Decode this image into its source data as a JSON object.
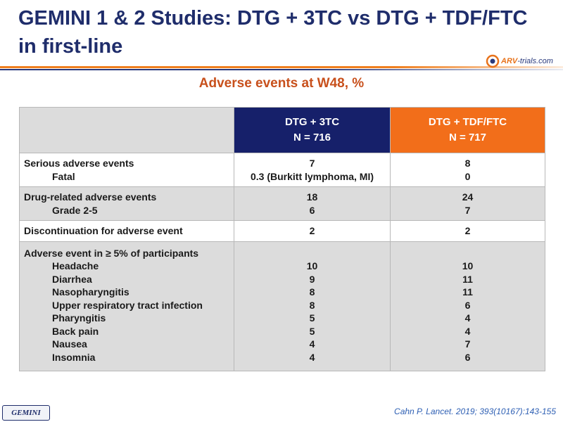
{
  "title_line1": "GEMINI 1 & 2 Studies: DTG + 3TC vs DTG + TDF/FTC",
  "title_line2": "in first-line",
  "logo": {
    "arv": "ARV",
    "rest": "-trials.com"
  },
  "subtitle": "Adverse events at W48, %",
  "columns": [
    {
      "name": "DTG + 3TC",
      "n": "N = 716",
      "color": "#16206a"
    },
    {
      "name": "DTG + TDF/FTC",
      "n": "N = 717",
      "color": "#f26e1a"
    }
  ],
  "rows": {
    "serious": {
      "label": "Serious adverse events",
      "sub": "Fatal",
      "a": "7",
      "a_sub": "0.3 (Burkitt lymphoma, MI)",
      "b": "8",
      "b_sub": "0"
    },
    "drug": {
      "label": "Drug-related adverse events",
      "sub": "Grade 2-5",
      "a": "18",
      "a_sub": "6",
      "b": "24",
      "b_sub": "7"
    },
    "discontinuation": {
      "label": "Discontinuation for adverse event",
      "a": "2",
      "b": "2"
    },
    "ae5": {
      "label": "Adverse event in ≥ 5% of participants",
      "items": [
        {
          "name": "Headache",
          "a": "10",
          "b": "10"
        },
        {
          "name": "Diarrhea",
          "a": "9",
          "b": "11"
        },
        {
          "name": "Nasopharyngitis",
          "a": "8",
          "b": "11"
        },
        {
          "name": "Upper respiratory tract infection",
          "a": "8",
          "b": "6"
        },
        {
          "name": "Pharyngitis",
          "a": "5",
          "b": "4"
        },
        {
          "name": "Back pain",
          "a": "5",
          "b": "4"
        },
        {
          "name": "Nausea",
          "a": "4",
          "b": "7"
        },
        {
          "name": "Insomnia",
          "a": "4",
          "b": "6"
        }
      ]
    }
  },
  "footer": {
    "badge": "GEMINI",
    "citation": "Cahn P. Lancet. 2019; 393(10167):143-155"
  }
}
